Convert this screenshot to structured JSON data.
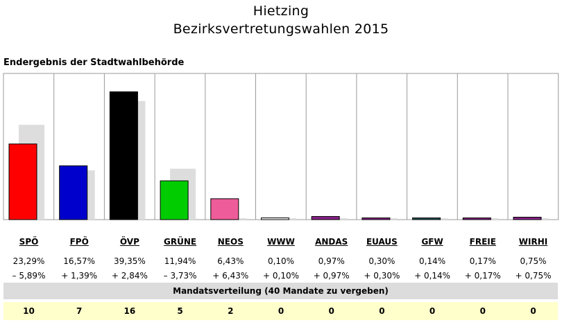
{
  "header": {
    "title_line1": "Hietzing",
    "title_line2": "Bezirksvertretungswahlen 2015",
    "subtitle": "Endergebnis der Stadtwahlbehörde"
  },
  "chart_data": {
    "type": "bar",
    "categories": [
      "SPÖ",
      "FPÖ",
      "ÖVP",
      "GRÜNE",
      "NEOS",
      "WWW",
      "ANDAS",
      "EUAUS",
      "GFW",
      "FREIE",
      "WIRHI"
    ],
    "series": [
      {
        "values": [
          23.29,
          16.57,
          39.35,
          11.94,
          6.43,
          0.1,
          0.97,
          0.3,
          0.14,
          0.17,
          0.75
        ]
      },
      {
        "values": [
          29.18,
          15.18,
          36.51,
          15.67,
          0.0,
          0.0,
          0.0,
          0.0,
          0.0,
          0.0,
          0.0
        ]
      }
    ],
    "percent_labels": [
      "23,29%",
      "16,57%",
      "39,35%",
      "11,94%",
      "6,43%",
      "0,10%",
      "0,97%",
      "0,30%",
      "0,14%",
      "0,17%",
      "0,75%"
    ],
    "change_labels": [
      "– 5,89%",
      "+ 1,39%",
      "+ 2,84%",
      "– 3,73%",
      "+ 6,43%",
      "+ 0,10%",
      "+ 0,97%",
      "+ 0,30%",
      "+ 0,14%",
      "+ 0,17%",
      "+ 0,75%"
    ],
    "colors": [
      "#ff0000",
      "#0000cc",
      "#000000",
      "#00cc00",
      "#ee5c99",
      "#ffffff",
      "#882288",
      "#882288",
      "#225555",
      "#882288",
      "#882288"
    ],
    "previous_color": "#dddddd",
    "ylim": [
      0,
      45
    ],
    "grid": "vertical separators"
  },
  "mandates": {
    "header": "Mandatsverteilung (40 Mandate zu vergeben)",
    "values": [
      "10",
      "7",
      "16",
      "5",
      "2",
      "0",
      "0",
      "0",
      "0",
      "0",
      "0"
    ]
  }
}
